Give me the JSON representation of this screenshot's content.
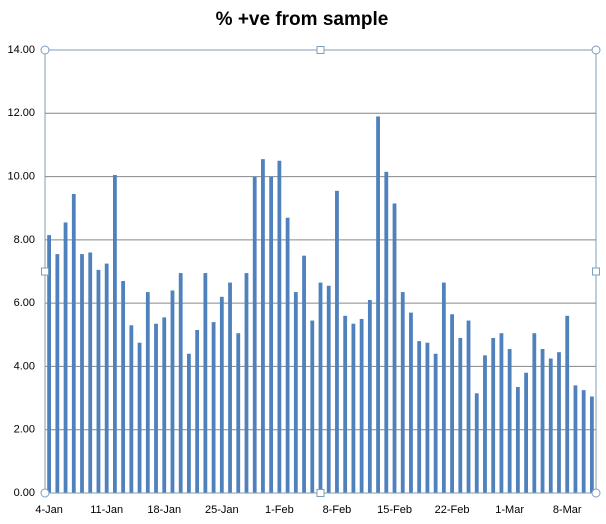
{
  "chart_data": {
    "type": "bar",
    "title": "% +ve from sample",
    "categories": [
      "4-Jan",
      null,
      null,
      null,
      null,
      null,
      null,
      "11-Jan",
      null,
      null,
      null,
      null,
      null,
      null,
      "18-Jan",
      null,
      null,
      null,
      null,
      null,
      null,
      "25-Jan",
      null,
      null,
      null,
      null,
      null,
      null,
      "1-Feb",
      null,
      null,
      null,
      null,
      null,
      null,
      "8-Feb",
      null,
      null,
      null,
      null,
      null,
      null,
      "15-Feb",
      null,
      null,
      null,
      null,
      null,
      null,
      "22-Feb",
      null,
      null,
      null,
      null,
      null,
      null,
      "1-Mar",
      null,
      null,
      null,
      null,
      null,
      null,
      "8-Mar",
      null,
      null,
      null
    ],
    "values": [
      8.15,
      7.55,
      8.55,
      9.45,
      7.55,
      7.6,
      7.05,
      7.25,
      10.05,
      6.7,
      5.3,
      4.75,
      6.35,
      5.35,
      5.55,
      6.4,
      6.95,
      4.4,
      5.15,
      6.95,
      5.4,
      6.2,
      6.65,
      5.05,
      6.95,
      10.0,
      10.55,
      10.0,
      10.5,
      8.7,
      6.35,
      7.5,
      5.45,
      6.65,
      6.55,
      9.55,
      5.6,
      5.35,
      5.5,
      6.1,
      11.9,
      10.15,
      9.15,
      6.35,
      5.7,
      4.8,
      4.75,
      4.4,
      6.65,
      5.65,
      4.9,
      5.45,
      3.15,
      4.35,
      4.9,
      5.05,
      4.55,
      3.35,
      3.8,
      5.05,
      4.55,
      4.25,
      4.45,
      5.6,
      3.4,
      3.25,
      3.05
    ],
    "color": "#4f81bd",
    "ylim": [
      0,
      14
    ],
    "yticks": [
      {
        "value": 0,
        "label": "0.00"
      },
      {
        "value": 2,
        "label": "2.00"
      },
      {
        "value": 4,
        "label": "4.00"
      },
      {
        "value": 6,
        "label": "6.00"
      },
      {
        "value": 8,
        "label": "8.00"
      },
      {
        "value": 10,
        "label": "10.00"
      },
      {
        "value": 12,
        "label": "12.00"
      },
      {
        "value": 14,
        "label": "14.00"
      }
    ],
    "grid": true
  }
}
